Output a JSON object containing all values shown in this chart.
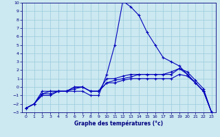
{
  "title": "",
  "xlabel": "Graphe des températures (°c)",
  "xlim": [
    -0.5,
    23.5
  ],
  "ylim": [
    -3,
    10
  ],
  "xticks": [
    0,
    1,
    2,
    3,
    4,
    5,
    6,
    7,
    8,
    9,
    10,
    11,
    12,
    13,
    14,
    15,
    16,
    17,
    18,
    19,
    20,
    21,
    22,
    23
  ],
  "yticks": [
    -3,
    -2,
    -1,
    0,
    1,
    2,
    3,
    4,
    5,
    6,
    7,
    8,
    9,
    10
  ],
  "background_color": "#cce8f0",
  "grid_color": "#99ccdd",
  "series": [
    {
      "x": [
        0,
        1,
        2,
        3,
        4,
        5,
        6,
        7,
        8,
        9,
        10,
        11,
        12,
        13,
        14,
        15,
        16,
        17,
        18,
        19,
        20,
        21,
        22,
        23
      ],
      "y": [
        -2.5,
        -2.0,
        -0.5,
        -0.5,
        -0.5,
        -0.5,
        -0.5,
        -0.5,
        -1.0,
        -1.0,
        1.5,
        5.0,
        10.2,
        9.5,
        8.5,
        6.5,
        5.0,
        3.5,
        3.0,
        2.5,
        1.5,
        0.5,
        -0.5,
        -3.0
      ],
      "color": "#0000bb",
      "marker": "+"
    },
    {
      "x": [
        0,
        1,
        2,
        3,
        4,
        5,
        6,
        7,
        8,
        9,
        10,
        11,
        12,
        13,
        14,
        15,
        16,
        17,
        18,
        19,
        20,
        21,
        22,
        23
      ],
      "y": [
        -2.5,
        -2.0,
        -0.8,
        -0.8,
        -0.5,
        -0.5,
        0.0,
        0.0,
        -0.5,
        -0.5,
        1.0,
        1.0,
        1.3,
        1.5,
        1.5,
        1.5,
        1.5,
        1.5,
        1.5,
        2.2,
        1.5,
        0.5,
        -0.5,
        -3.0
      ],
      "color": "#0000bb",
      "marker": "+"
    },
    {
      "x": [
        0,
        1,
        2,
        3,
        4,
        5,
        6,
        7,
        8,
        9,
        10,
        11,
        12,
        13,
        14,
        15,
        16,
        17,
        18,
        19,
        20,
        21,
        22,
        23
      ],
      "y": [
        -2.5,
        -2.0,
        -1.0,
        -1.0,
        -0.5,
        -0.5,
        -0.2,
        0.0,
        -0.5,
        -0.5,
        0.5,
        0.5,
        0.8,
        1.0,
        1.0,
        1.0,
        1.0,
        1.0,
        1.0,
        1.5,
        1.3,
        0.5,
        -0.5,
        -3.0
      ],
      "color": "#0000bb",
      "marker": "+"
    },
    {
      "x": [
        0,
        1,
        2,
        3,
        4,
        5,
        6,
        7,
        8,
        9,
        10,
        11,
        12,
        13,
        14,
        15,
        16,
        17,
        18,
        19,
        20,
        21,
        22,
        23
      ],
      "y": [
        -2.5,
        -2.0,
        -0.8,
        -0.5,
        -0.5,
        -0.5,
        0.0,
        0.0,
        -0.5,
        -0.5,
        0.5,
        0.8,
        1.0,
        1.2,
        1.5,
        1.5,
        1.5,
        1.5,
        1.8,
        2.2,
        1.8,
        0.8,
        -0.2,
        -3.0
      ],
      "color": "#0000bb",
      "marker": "+"
    }
  ]
}
